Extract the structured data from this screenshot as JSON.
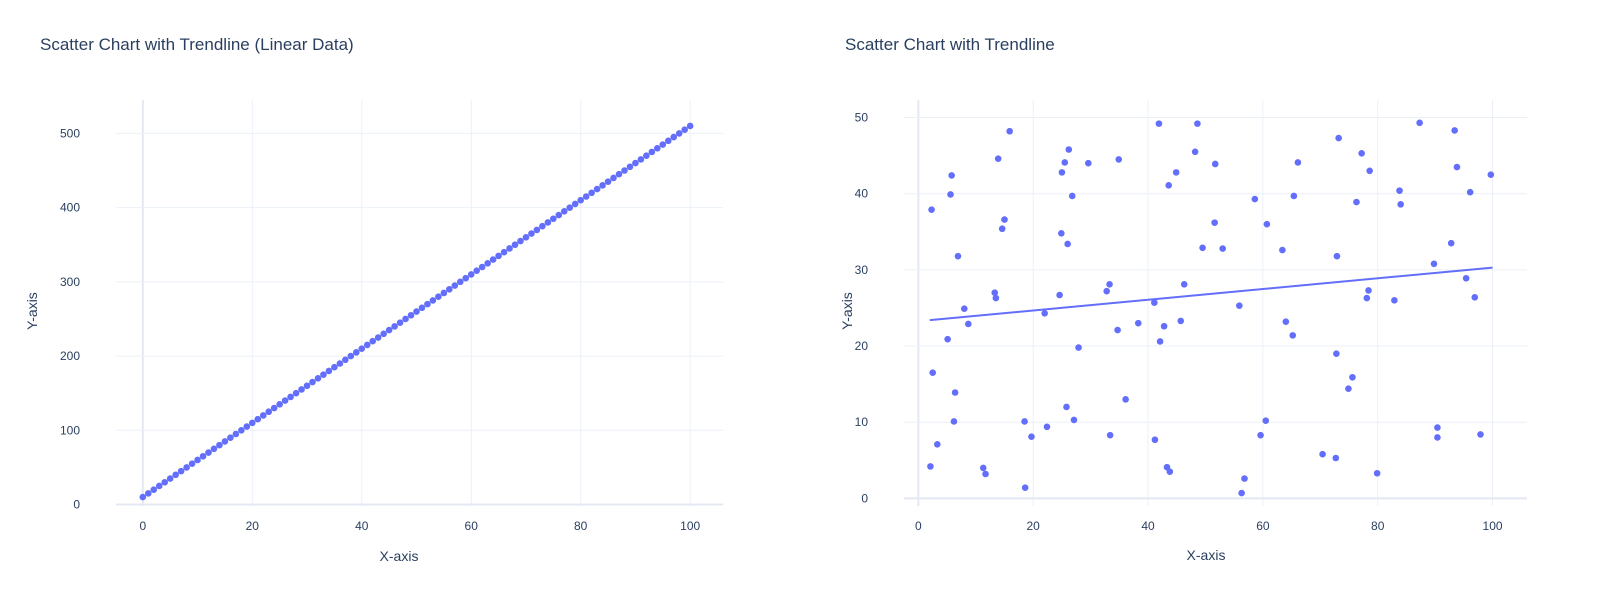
{
  "chart_data": [
    {
      "type": "scatter",
      "title": "Scatter Chart with Trendline (Linear Data)",
      "xlabel": "X-axis",
      "ylabel": "Y-axis",
      "xlim": [
        -4.9,
        106
      ],
      "ylim": [
        -2,
        545
      ],
      "xticks": [
        0,
        20,
        40,
        60,
        80,
        100
      ],
      "yticks": [
        0,
        100,
        200,
        300,
        400,
        500
      ],
      "grid": true,
      "legend": "none",
      "marker_color": "#636efa",
      "series": [
        {
          "points": [
            [
              0,
              10
            ],
            [
              1,
              15
            ],
            [
              2,
              20
            ],
            [
              3,
              25
            ],
            [
              4,
              30
            ],
            [
              5,
              35
            ],
            [
              6,
              40
            ],
            [
              7,
              45
            ],
            [
              8,
              50
            ],
            [
              9,
              55
            ],
            [
              10,
              60
            ],
            [
              11,
              65
            ],
            [
              12,
              70
            ],
            [
              13,
              75
            ],
            [
              14,
              80
            ],
            [
              15,
              85
            ],
            [
              16,
              90
            ],
            [
              17,
              95
            ],
            [
              18,
              100
            ],
            [
              19,
              105
            ],
            [
              20,
              110
            ],
            [
              21,
              115
            ],
            [
              22,
              120
            ],
            [
              23,
              125
            ],
            [
              24,
              130
            ],
            [
              25,
              135
            ],
            [
              26,
              140
            ],
            [
              27,
              145
            ],
            [
              28,
              150
            ],
            [
              29,
              155
            ],
            [
              30,
              160
            ],
            [
              31,
              165
            ],
            [
              32,
              170
            ],
            [
              33,
              175
            ],
            [
              34,
              180
            ],
            [
              35,
              185
            ],
            [
              36,
              190
            ],
            [
              37,
              195
            ],
            [
              38,
              200
            ],
            [
              39,
              205
            ],
            [
              40,
              210
            ],
            [
              41,
              215
            ],
            [
              42,
              220
            ],
            [
              43,
              225
            ],
            [
              44,
              230
            ],
            [
              45,
              235
            ],
            [
              46,
              240
            ],
            [
              47,
              245
            ],
            [
              48,
              250
            ],
            [
              49,
              255
            ],
            [
              50,
              260
            ],
            [
              51,
              265
            ],
            [
              52,
              270
            ],
            [
              53,
              275
            ],
            [
              54,
              280
            ],
            [
              55,
              285
            ],
            [
              56,
              290
            ],
            [
              57,
              295
            ],
            [
              58,
              300
            ],
            [
              59,
              305
            ],
            [
              60,
              310
            ],
            [
              61,
              315
            ],
            [
              62,
              320
            ],
            [
              63,
              325
            ],
            [
              64,
              330
            ],
            [
              65,
              335
            ],
            [
              66,
              340
            ],
            [
              67,
              345
            ],
            [
              68,
              350
            ],
            [
              69,
              355
            ],
            [
              70,
              360
            ],
            [
              71,
              365
            ],
            [
              72,
              370
            ],
            [
              73,
              375
            ],
            [
              74,
              380
            ],
            [
              75,
              385
            ],
            [
              76,
              390
            ],
            [
              77,
              395
            ],
            [
              78,
              400
            ],
            [
              79,
              405
            ],
            [
              80,
              410
            ],
            [
              81,
              415
            ],
            [
              82,
              420
            ],
            [
              83,
              425
            ],
            [
              84,
              430
            ],
            [
              85,
              435
            ],
            [
              86,
              440
            ],
            [
              87,
              445
            ],
            [
              88,
              450
            ],
            [
              89,
              455
            ],
            [
              90,
              460
            ],
            [
              91,
              465
            ],
            [
              92,
              470
            ],
            [
              93,
              475
            ],
            [
              94,
              480
            ],
            [
              95,
              485
            ],
            [
              96,
              490
            ],
            [
              97,
              495
            ],
            [
              98,
              500
            ],
            [
              99,
              505
            ],
            [
              100,
              510
            ]
          ]
        }
      ]
    },
    {
      "type": "scatter",
      "title": "Scatter Chart with Trendline",
      "xlabel": "X-axis",
      "ylabel": "Y-axis",
      "xlim": [
        -2.5,
        106
      ],
      "ylim": [
        -1,
        52.3
      ],
      "xticks": [
        0,
        20,
        40,
        60,
        80,
        100
      ],
      "yticks": [
        0,
        10,
        20,
        30,
        40,
        50
      ],
      "grid": true,
      "legend": "none",
      "marker_color": "#636efa",
      "trendline": {
        "x": [
          2,
          100
        ],
        "y": [
          23.4,
          30.3
        ],
        "color": "#636efa"
      },
      "series": [
        {
          "points": [
            [
              2.1,
              4.2
            ],
            [
              2.3,
              37.9
            ],
            [
              2.5,
              16.5
            ],
            [
              3.3,
              7.1
            ],
            [
              5.1,
              20.9
            ],
            [
              5.6,
              39.9
            ],
            [
              5.8,
              42.4
            ],
            [
              6.2,
              10.1
            ],
            [
              6.4,
              13.9
            ],
            [
              6.9,
              31.8
            ],
            [
              8,
              24.9
            ],
            [
              8.7,
              22.9
            ],
            [
              11.3,
              4
            ],
            [
              11.7,
              3.2
            ],
            [
              13.3,
              27
            ],
            [
              13.5,
              26.3
            ],
            [
              13.9,
              44.6
            ],
            [
              14.6,
              35.4
            ],
            [
              15,
              36.6
            ],
            [
              15.9,
              48.2
            ],
            [
              18.5,
              10.1
            ],
            [
              18.6,
              1.4
            ],
            [
              19.7,
              8.1
            ],
            [
              22,
              24.3
            ],
            [
              22.4,
              9.4
            ],
            [
              24.6,
              26.7
            ],
            [
              24.9,
              34.8
            ],
            [
              25,
              42.8
            ],
            [
              25.5,
              44.1
            ],
            [
              25.8,
              12
            ],
            [
              26,
              33.4
            ],
            [
              26.2,
              45.8
            ],
            [
              26.8,
              39.7
            ],
            [
              27.1,
              10.3
            ],
            [
              27.9,
              19.8
            ],
            [
              29.6,
              44
            ],
            [
              32.8,
              27.2
            ],
            [
              33.3,
              28.1
            ],
            [
              33.4,
              8.3
            ],
            [
              34.7,
              22.1
            ],
            [
              34.9,
              44.5
            ],
            [
              36.1,
              13
            ],
            [
              38.3,
              23
            ],
            [
              41.1,
              25.7
            ],
            [
              41.2,
              7.7
            ],
            [
              41.9,
              49.2
            ],
            [
              42.1,
              20.6
            ],
            [
              42.8,
              22.6
            ],
            [
              43.3,
              4.1
            ],
            [
              43.6,
              41.1
            ],
            [
              43.8,
              3.5
            ],
            [
              44.9,
              42.8
            ],
            [
              45.7,
              23.3
            ],
            [
              46.3,
              28.1
            ],
            [
              48.2,
              45.5
            ],
            [
              48.6,
              49.2
            ],
            [
              49.5,
              32.9
            ],
            [
              51.6,
              36.2
            ],
            [
              51.7,
              43.9
            ],
            [
              53,
              32.8
            ],
            [
              55.9,
              25.3
            ],
            [
              56.3,
              0.7
            ],
            [
              56.8,
              2.6
            ],
            [
              58.6,
              39.3
            ],
            [
              59.6,
              8.3
            ],
            [
              60.5,
              10.2
            ],
            [
              60.7,
              36
            ],
            [
              63.4,
              32.6
            ],
            [
              64,
              23.2
            ],
            [
              65.2,
              21.4
            ],
            [
              65.4,
              39.7
            ],
            [
              66.1,
              44.1
            ],
            [
              70.4,
              5.8
            ],
            [
              72.7,
              5.3
            ],
            [
              72.8,
              19
            ],
            [
              72.9,
              31.8
            ],
            [
              73.2,
              47.3
            ],
            [
              74.9,
              14.4
            ],
            [
              75.6,
              15.9
            ],
            [
              76.3,
              38.9
            ],
            [
              77.2,
              45.3
            ],
            [
              78.1,
              26.3
            ],
            [
              78.4,
              27.3
            ],
            [
              78.6,
              43
            ],
            [
              79.9,
              3.3
            ],
            [
              82.9,
              26
            ],
            [
              83.8,
              40.4
            ],
            [
              84,
              38.6
            ],
            [
              87.3,
              49.3
            ],
            [
              89.8,
              30.8
            ],
            [
              90.4,
              9.3
            ],
            [
              90.4,
              8
            ],
            [
              92.8,
              33.5
            ],
            [
              93.4,
              48.3
            ],
            [
              93.8,
              43.5
            ],
            [
              95.4,
              28.9
            ],
            [
              96.1,
              40.2
            ],
            [
              96.9,
              26.4
            ],
            [
              97.9,
              8.4
            ],
            [
              99.7,
              42.5
            ]
          ]
        }
      ]
    }
  ]
}
